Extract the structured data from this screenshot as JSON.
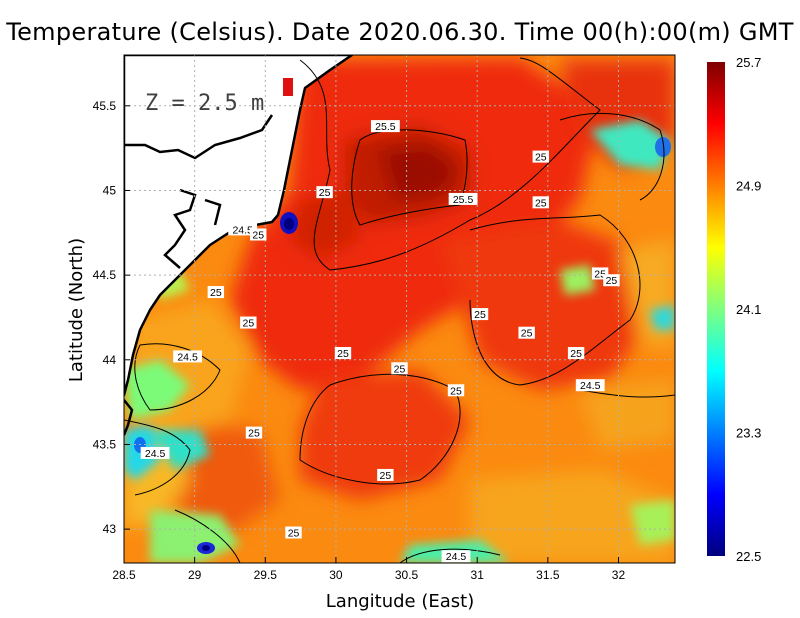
{
  "chart_data": {
    "type": "heatmap",
    "title": "Temperature (Celsius). Date 2020.06.30. Time 00(h):00(m)  GMT",
    "xlabel": "Langitude (East)",
    "ylabel": "Latitude (North)",
    "depth_label": "Z = 2.5 m",
    "xlim": [
      28.5,
      32.4
    ],
    "ylim": [
      42.8,
      45.8
    ],
    "xticks": [
      28.5,
      29,
      29.5,
      30,
      30.5,
      31,
      31.5,
      32
    ],
    "xtick_labels": [
      "28.5",
      "29",
      "29.5",
      "30",
      "30.5",
      "31",
      "31.5",
      "32"
    ],
    "yticks": [
      43,
      43.5,
      44,
      44.5,
      45,
      45.5
    ],
    "ytick_labels": [
      "43",
      "43.5",
      "44",
      "44.5",
      "45",
      "45.5"
    ],
    "grid": true,
    "colorbar": {
      "min": 22.5,
      "max": 25.7,
      "labeled_values": [
        25.7,
        24.9,
        24.1,
        23.3,
        22.5
      ],
      "labels": [
        "25.7",
        "24.9",
        "24.1",
        "23.3",
        "22.5"
      ],
      "colors": [
        "#00007f",
        "#0000ff",
        "#007fff",
        "#00ffff",
        "#7fff7f",
        "#ffff00",
        "#ff7f00",
        "#ff0000",
        "#7f0000"
      ]
    },
    "contour_labels": [
      {
        "lon": 30.35,
        "lat": 45.38,
        "text": "25.5"
      },
      {
        "lon": 30.9,
        "lat": 44.95,
        "text": "25.5"
      },
      {
        "lon": 31.45,
        "lat": 45.2,
        "text": "25"
      },
      {
        "lon": 29.92,
        "lat": 44.99,
        "text": "25"
      },
      {
        "lon": 31.45,
        "lat": 44.93,
        "text": "25"
      },
      {
        "lon": 29.34,
        "lat": 44.77,
        "text": "24.5"
      },
      {
        "lon": 29.45,
        "lat": 44.74,
        "text": "25"
      },
      {
        "lon": 31.87,
        "lat": 44.51,
        "text": "25"
      },
      {
        "lon": 31.95,
        "lat": 44.47,
        "text": "25"
      },
      {
        "lon": 29.15,
        "lat": 44.4,
        "text": "25"
      },
      {
        "lon": 31.02,
        "lat": 44.27,
        "text": "25"
      },
      {
        "lon": 29.38,
        "lat": 44.22,
        "text": "25"
      },
      {
        "lon": 31.35,
        "lat": 44.16,
        "text": "25"
      },
      {
        "lon": 30.05,
        "lat": 44.04,
        "text": "25"
      },
      {
        "lon": 31.7,
        "lat": 44.04,
        "text": "25"
      },
      {
        "lon": 28.95,
        "lat": 44.02,
        "text": "24.5"
      },
      {
        "lon": 30.45,
        "lat": 43.95,
        "text": "25"
      },
      {
        "lon": 30.85,
        "lat": 43.82,
        "text": "25"
      },
      {
        "lon": 31.8,
        "lat": 43.85,
        "text": "24.5"
      },
      {
        "lon": 29.42,
        "lat": 43.57,
        "text": "25"
      },
      {
        "lon": 28.72,
        "lat": 43.45,
        "text": "24.5"
      },
      {
        "lon": 30.35,
        "lat": 43.32,
        "text": "25"
      },
      {
        "lon": 29.7,
        "lat": 42.98,
        "text": "25"
      },
      {
        "lon": 30.85,
        "lat": 42.84,
        "text": "24.5"
      }
    ]
  }
}
